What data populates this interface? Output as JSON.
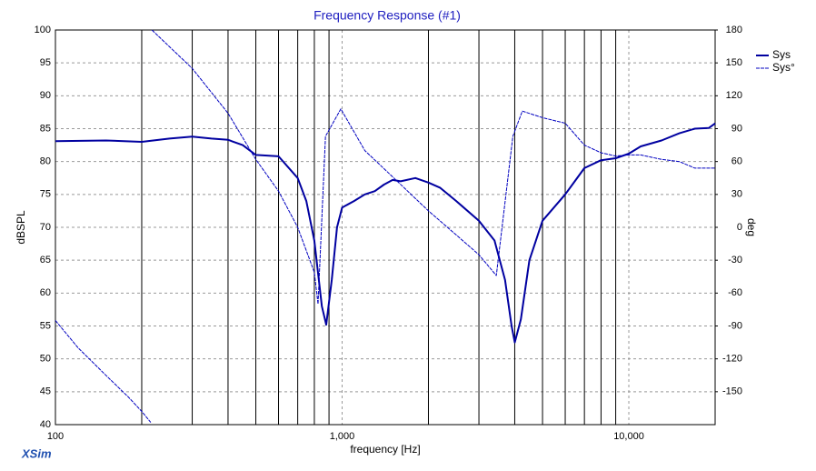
{
  "chart_data": {
    "type": "line",
    "title": "Frequency Response (#1)",
    "xlabel": "frequency [Hz]",
    "ylabel": "dBSPL",
    "y2label": "deg",
    "brand": "XSim",
    "xscale": "log",
    "xlim": [
      100,
      20000
    ],
    "xticks": [
      100,
      {
        "value": 1000,
        "label": "1,000"
      },
      {
        "value": 10000,
        "label": "10,000"
      }
    ],
    "xminor": [
      200,
      300,
      400,
      500,
      600,
      700,
      800,
      900,
      2000,
      3000,
      4000,
      5000,
      6000,
      7000,
      8000,
      9000
    ],
    "ylim": [
      40,
      100
    ],
    "yticks": [
      40,
      45,
      50,
      55,
      60,
      65,
      70,
      75,
      80,
      85,
      90,
      95,
      100
    ],
    "y2lim": [
      -180,
      180
    ],
    "y2ticks": [
      -150,
      -120,
      -90,
      -60,
      -30,
      0,
      30,
      60,
      90,
      120,
      150,
      180
    ],
    "grid": true,
    "legend": "right",
    "series": [
      {
        "name": "Sys",
        "color": "#0000a0",
        "width": 2,
        "dash": "none",
        "x": [
          100,
          150,
          200,
          250,
          300,
          350,
          400,
          450,
          500,
          600,
          700,
          750,
          800,
          850,
          880,
          920,
          960,
          1000,
          1100,
          1200,
          1300,
          1400,
          1500,
          1600,
          1800,
          2000,
          2200,
          2500,
          3000,
          3400,
          3700,
          3900,
          4000,
          4200,
          4500,
          5000,
          6000,
          7000,
          8000,
          9000,
          10000,
          11000,
          13000,
          15000,
          17000,
          19000,
          20000
        ],
        "values": [
          83.1,
          83.2,
          83,
          83.5,
          83.8,
          83.5,
          83.3,
          82.5,
          81,
          80.8,
          77.5,
          74,
          68,
          58,
          55.2,
          62,
          70,
          73,
          74,
          75,
          75.5,
          76.5,
          77.2,
          77,
          77.5,
          76.8,
          76,
          74,
          71,
          68,
          62,
          55,
          52.5,
          56,
          65,
          71,
          75,
          79,
          80.2,
          80.5,
          81.2,
          82.3,
          83.2,
          84.3,
          85,
          85.1,
          85.8
        ]
      },
      {
        "name": "Sys°",
        "color": "#0000c0",
        "width": 1,
        "dash": "4,1",
        "axis": "y2",
        "x": [
          100,
          120,
          150,
          180,
          200,
          215,
          216,
          217,
          300,
          400,
          500,
          600,
          700,
          800,
          824,
          875,
          990,
          1200,
          1500,
          2000,
          2500,
          3000,
          3450,
          3940,
          4250,
          5000,
          6000,
          7000,
          8000,
          9000,
          10000,
          11000,
          13000,
          15000,
          17000,
          20000
        ],
        "values": [
          -85,
          -110,
          -135,
          -155,
          -168,
          -178,
          null,
          180,
          145,
          104,
          62,
          33,
          0,
          -41,
          -70,
          83,
          108,
          70,
          46,
          15,
          -7,
          -25,
          -44,
          83,
          106,
          100,
          95,
          75,
          68,
          65,
          66,
          66,
          62,
          60,
          54,
          54
        ]
      }
    ]
  }
}
